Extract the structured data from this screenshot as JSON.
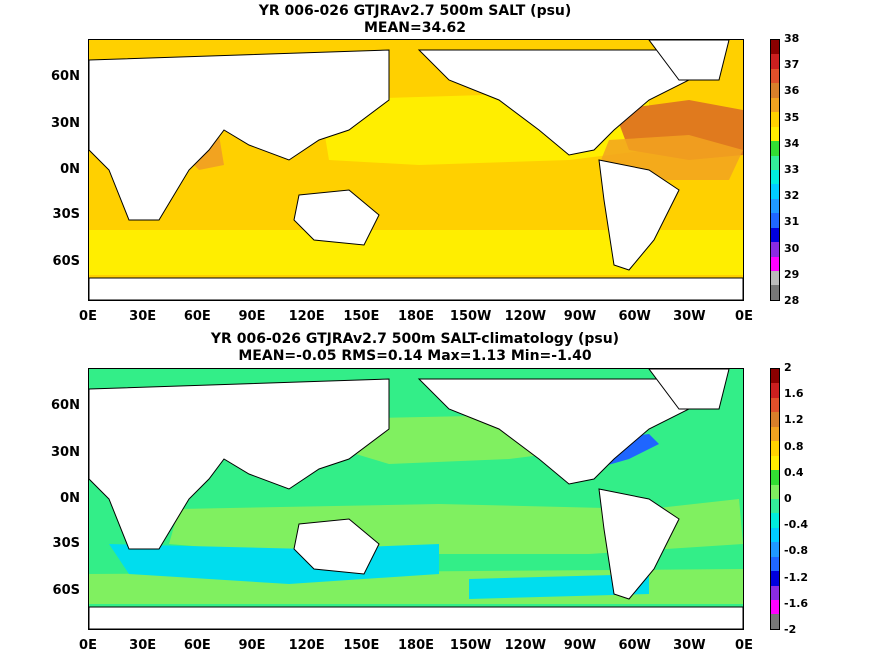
{
  "panels": [
    {
      "title_line1": "YR 006-026 GTJRAv2.7 500m SALT (psu)",
      "title_line2": "MEAN=34.62",
      "colorbar_labels": [
        "38",
        "37",
        "36",
        "35",
        "34",
        "33",
        "32",
        "31",
        "30",
        "29",
        "28"
      ],
      "colorbar_colors": [
        "#8b0000",
        "#cc1f1f",
        "#e0502a",
        "#d97f2a",
        "#f2a320",
        "#ffd200",
        "#ffee00",
        "#33dd33",
        "#33ee99",
        "#00eedd",
        "#00ccff",
        "#1f99ff",
        "#1f66ff",
        "#0000dd",
        "#8a2be2",
        "#ff00ff",
        "#bbbbbb",
        "#777777"
      ],
      "ocean_base": "#ffd000",
      "ocean_fields": [
        {
          "name": "north-pacific-fresh",
          "color": "#ffee00"
        },
        {
          "name": "north-atlantic-salty",
          "color": "#e07a1e"
        },
        {
          "name": "arabian-sea",
          "color": "#f2a320"
        },
        {
          "name": "mediterranean",
          "color": "#9b0f0f"
        }
      ]
    },
    {
      "title_line1": "YR 006-026 GTJRAv2.7 500m SALT-climatology (psu)",
      "title_line2": "MEAN=-0.05   RMS=0.14   Max=1.13   Min=-1.40",
      "colorbar_labels": [
        "2",
        "1.6",
        "1.2",
        "0.8",
        "0.4",
        "0",
        "-0.4",
        "-0.8",
        "-1.2",
        "-1.6",
        "-2"
      ],
      "colorbar_colors": [
        "#8b0000",
        "#cc1f1f",
        "#e0502a",
        "#d97f2a",
        "#f2a320",
        "#ffd200",
        "#ffee00",
        "#33dd33",
        "#80ee60",
        "#33ee99",
        "#00eedd",
        "#00ccff",
        "#1f99ff",
        "#1f66ff",
        "#0000dd",
        "#8a2be2",
        "#ff00ff",
        "#777777"
      ],
      "ocean_base": "#33ee88",
      "ocean_fields": [
        {
          "name": "positive-anomaly",
          "color": "#80f060"
        },
        {
          "name": "southern-cyan",
          "color": "#00ddee"
        },
        {
          "name": "gulf-stream-blue",
          "color": "#1f66ff"
        }
      ]
    }
  ],
  "lat_labels": [
    "60N",
    "30N",
    "0N",
    "30S",
    "60S"
  ],
  "lon_labels": [
    "0E",
    "30E",
    "60E",
    "90E",
    "120E",
    "150E",
    "180E",
    "150W",
    "120W",
    "90W",
    "60W",
    "30W",
    "0E"
  ]
}
